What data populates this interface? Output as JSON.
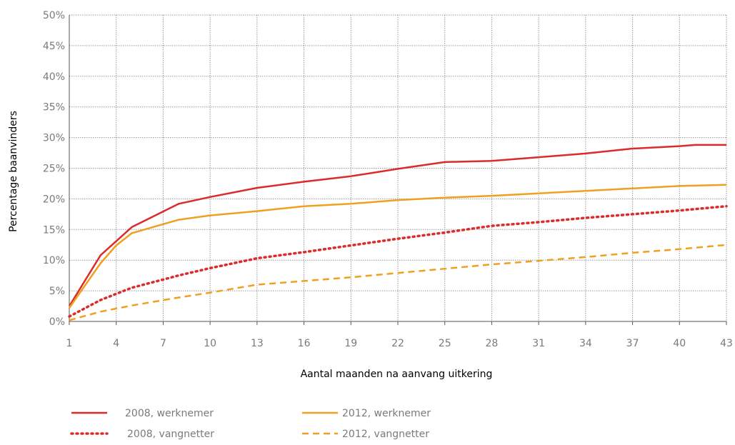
{
  "chart_data": {
    "type": "line",
    "xlabel": "Aantal maanden na aanvang uitkering",
    "ylabel": "Percentage baanvinders",
    "x_ticks": [
      "1",
      "4",
      "7",
      "10",
      "13",
      "16",
      "19",
      "22",
      "25",
      "28",
      "31",
      "34",
      "37",
      "40",
      "43"
    ],
    "y_ticks": [
      "0%",
      "5%",
      "10%",
      "15%",
      "20%",
      "25%",
      "30%",
      "35%",
      "40%",
      "45%",
      "50%"
    ],
    "xlim": [
      1,
      43
    ],
    "ylim": [
      0,
      50
    ],
    "grid": true,
    "legend_position": "bottom",
    "series": [
      {
        "name": "2008, werknemer",
        "color": "#dc2b2b",
        "dash": "solid",
        "points": [
          [
            1,
            2.5
          ],
          [
            3,
            10.8
          ],
          [
            5,
            15.4
          ],
          [
            8,
            19.2
          ],
          [
            10,
            20.3
          ],
          [
            13,
            21.8
          ],
          [
            16,
            22.8
          ],
          [
            19,
            23.7
          ],
          [
            22,
            24.9
          ],
          [
            25,
            26.0
          ],
          [
            28,
            26.2
          ],
          [
            31,
            26.8
          ],
          [
            34,
            27.4
          ],
          [
            37,
            28.2
          ],
          [
            40,
            28.6
          ],
          [
            41,
            28.8
          ],
          [
            43,
            28.8
          ]
        ]
      },
      {
        "name": "2012, werknemer",
        "color": "#f0a020",
        "dash": "solid",
        "points": [
          [
            1,
            2.2
          ],
          [
            3,
            9.5
          ],
          [
            4,
            12.4
          ],
          [
            5,
            14.4
          ],
          [
            8,
            16.6
          ],
          [
            10,
            17.3
          ],
          [
            13,
            18.0
          ],
          [
            16,
            18.8
          ],
          [
            19,
            19.2
          ],
          [
            22,
            19.8
          ],
          [
            25,
            20.2
          ],
          [
            28,
            20.5
          ],
          [
            31,
            20.9
          ],
          [
            34,
            21.3
          ],
          [
            37,
            21.7
          ],
          [
            40,
            22.1
          ],
          [
            43,
            22.3
          ]
        ]
      },
      {
        "name": "2008, vangnetter",
        "color": "#dc2b2b",
        "dash": "dotted",
        "points": [
          [
            1,
            0.8
          ],
          [
            3,
            3.5
          ],
          [
            5,
            5.5
          ],
          [
            8,
            7.5
          ],
          [
            10,
            8.7
          ],
          [
            13,
            10.3
          ],
          [
            16,
            11.3
          ],
          [
            19,
            12.4
          ],
          [
            22,
            13.5
          ],
          [
            25,
            14.5
          ],
          [
            28,
            15.6
          ],
          [
            31,
            16.2
          ],
          [
            34,
            16.9
          ],
          [
            37,
            17.5
          ],
          [
            40,
            18.1
          ],
          [
            43,
            18.8
          ]
        ]
      },
      {
        "name": "2012, vangnetter",
        "color": "#f0a020",
        "dash": "dashed",
        "points": [
          [
            1,
            0.2
          ],
          [
            3,
            1.6
          ],
          [
            5,
            2.6
          ],
          [
            8,
            3.9
          ],
          [
            10,
            4.7
          ],
          [
            13,
            6.0
          ],
          [
            16,
            6.6
          ],
          [
            19,
            7.2
          ],
          [
            22,
            7.9
          ],
          [
            25,
            8.6
          ],
          [
            28,
            9.3
          ],
          [
            31,
            9.9
          ],
          [
            34,
            10.5
          ],
          [
            37,
            11.2
          ],
          [
            40,
            11.8
          ],
          [
            43,
            12.5
          ]
        ]
      }
    ]
  }
}
